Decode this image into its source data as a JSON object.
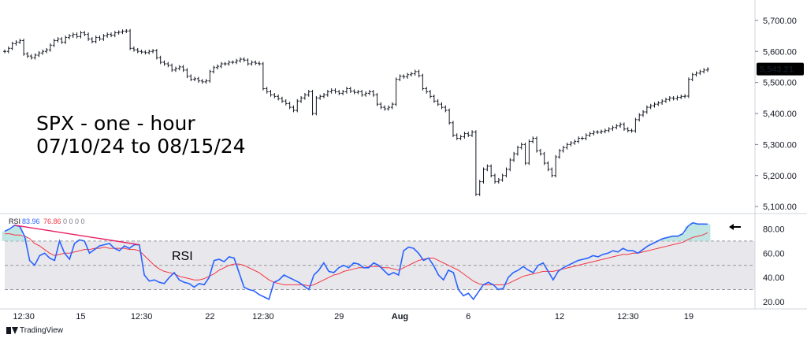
{
  "overlay": {
    "title_line1": "SPX - one - hour",
    "title_line2": "07/10/24 to 08/15/24",
    "rsi_note": "RSI"
  },
  "rsi_header": {
    "name": "RSI",
    "value": "83.96",
    "ma_value": "76.86",
    "zeros": "0 0 0 0"
  },
  "footer": {
    "brand": "TradingView",
    "icon": "tradingview-logo-icon"
  },
  "colors": {
    "price": "#131722",
    "rsi": "#2962ff",
    "rsi_ma": "#f23645",
    "band": "#e8e8ec",
    "grid": "#d1d4dc",
    "price_label_bg": "#000000",
    "trendline": "#e91e63",
    "fill_over": "#b2dfdb"
  },
  "chart_data": [
    {
      "type": "ohlc",
      "title": "SPX - one - hour",
      "ylim": [
        5080,
        5720
      ],
      "y_ticks": [
        "5,100.00",
        "5,200.00",
        "5,300.00",
        "5,400.00",
        "5,500.00",
        "5,600.00",
        "5,700.00"
      ],
      "x_ticks": [
        "12:30",
        "15",
        "12:30",
        "22",
        "12:30",
        "29",
        "Aug",
        "6",
        "12",
        "12:30",
        "19"
      ],
      "last_price": "5,543.21",
      "trading_hours": [
        {
          "date": "07/10",
          "close": [
            5600,
            5610,
            5625,
            5630,
            5635
          ]
        },
        {
          "date": "07/11",
          "close": [
            5592,
            5585,
            5580,
            5588,
            5595,
            5600,
            5605
          ]
        },
        {
          "date": "07/12",
          "close": [
            5620,
            5635,
            5640,
            5630,
            5645,
            5650,
            5655
          ]
        },
        {
          "date": "07/15",
          "close": [
            5648,
            5660,
            5655,
            5640,
            5632,
            5645,
            5640
          ]
        },
        {
          "date": "07/16",
          "close": [
            5650,
            5655,
            5652,
            5660,
            5662,
            5665,
            5666
          ]
        },
        {
          "date": "07/17",
          "close": [
            5610,
            5605,
            5600,
            5598,
            5596,
            5600,
            5602
          ]
        },
        {
          "date": "07/18",
          "close": [
            5580,
            5565,
            5560,
            5555,
            5540,
            5545,
            5550
          ]
        },
        {
          "date": "07/19",
          "close": [
            5540,
            5520,
            5510,
            5512,
            5505,
            5502,
            5505
          ]
        },
        {
          "date": "07/22",
          "close": [
            5535,
            5548,
            5552,
            5560,
            5560,
            5565,
            5565
          ]
        },
        {
          "date": "07/23",
          "close": [
            5570,
            5575,
            5572,
            5560,
            5565,
            5562,
            5560
          ]
        },
        {
          "date": "07/24",
          "close": [
            5480,
            5470,
            5460,
            5455,
            5448,
            5440,
            5432
          ]
        },
        {
          "date": "07/25",
          "close": [
            5420,
            5410,
            5440,
            5450,
            5460,
            5470,
            5400
          ]
        },
        {
          "date": "07/26",
          "close": [
            5450,
            5455,
            5460,
            5470,
            5475,
            5470,
            5465
          ]
        },
        {
          "date": "07/29",
          "close": [
            5470,
            5480,
            5472,
            5468,
            5470,
            5460,
            5465
          ]
        },
        {
          "date": "07/30",
          "close": [
            5470,
            5460,
            5430,
            5420,
            5415,
            5420,
            5430
          ]
        },
        {
          "date": "07/31",
          "close": [
            5510,
            5520,
            5518,
            5525,
            5528,
            5535,
            5522
          ]
        },
        {
          "date": "08/01",
          "close": [
            5480,
            5470,
            5455,
            5440,
            5430,
            5420,
            5410
          ]
        },
        {
          "date": "08/02",
          "close": [
            5370,
            5330,
            5320,
            5325,
            5335,
            5330,
            5340
          ]
        },
        {
          "date": "08/05",
          "close": [
            5140,
            5180,
            5220,
            5230,
            5200,
            5180,
            5186
          ]
        },
        {
          "date": "08/06",
          "close": [
            5200,
            5220,
            5250,
            5270,
            5290,
            5300,
            5240
          ]
        },
        {
          "date": "08/07",
          "close": [
            5310,
            5320,
            5280,
            5270,
            5240,
            5220,
            5200
          ]
        },
        {
          "date": "08/08",
          "close": [
            5260,
            5280,
            5290,
            5300,
            5305,
            5310,
            5320
          ]
        },
        {
          "date": "08/09",
          "close": [
            5320,
            5330,
            5335,
            5340,
            5340,
            5342,
            5345
          ]
        },
        {
          "date": "08/12",
          "close": [
            5350,
            5355,
            5360,
            5365,
            5350,
            5345,
            5344
          ]
        },
        {
          "date": "08/13",
          "close": [
            5380,
            5395,
            5405,
            5420,
            5425,
            5430,
            5434
          ]
        },
        {
          "date": "08/14",
          "close": [
            5440,
            5445,
            5450,
            5448,
            5452,
            5455,
            5456
          ]
        },
        {
          "date": "08/15",
          "close": [
            5510,
            5525,
            5530,
            5535,
            5540,
            5543
          ]
        }
      ]
    },
    {
      "type": "line",
      "title": "RSI",
      "ylim": [
        18,
        92
      ],
      "y_ticks": [
        "20.00",
        "40.00",
        "60.00",
        "80.00"
      ],
      "levels": [
        30,
        50,
        70
      ],
      "band": [
        30,
        70
      ],
      "series": [
        {
          "name": "RSI",
          "values": [
            78,
            80,
            83,
            82,
            74,
            54,
            50,
            58,
            60,
            56,
            54,
            70,
            60,
            55,
            68,
            71,
            70,
            60,
            63,
            66,
            67,
            68,
            64,
            62,
            66,
            64,
            67,
            67,
            42,
            37,
            38,
            36,
            35,
            40,
            44,
            38,
            36,
            35,
            32,
            35,
            34,
            40,
            54,
            55,
            53,
            57,
            56,
            44,
            32,
            30,
            29,
            26,
            24,
            22,
            36,
            38,
            42,
            40,
            38,
            36,
            33,
            30,
            42,
            46,
            52,
            45,
            44,
            48,
            50,
            48,
            52,
            51,
            48,
            48,
            52,
            50,
            46,
            42,
            44,
            42,
            62,
            65,
            64,
            60,
            54,
            56,
            50,
            42,
            38,
            46,
            44,
            30,
            25,
            27,
            22,
            28,
            34,
            36,
            34,
            30,
            31,
            40,
            44,
            46,
            49,
            46,
            44,
            50,
            52,
            45,
            38,
            45,
            48,
            50,
            52,
            54,
            55,
            56,
            58,
            57,
            59,
            60,
            62,
            61,
            64,
            62,
            62,
            60,
            63,
            66,
            68,
            70,
            72,
            73,
            74,
            74,
            76,
            82,
            85,
            84,
            84,
            83.96
          ]
        },
        {
          "name": "RSI-based MA",
          "values": [
            76,
            76,
            75,
            75,
            74,
            72,
            68,
            66,
            63,
            60,
            58,
            59,
            60,
            60,
            61,
            62,
            63,
            63,
            64,
            64,
            65,
            64,
            64,
            64,
            64,
            63,
            63,
            62,
            58,
            54,
            50,
            47,
            45,
            44,
            43,
            41,
            40,
            39,
            38,
            38,
            39,
            41,
            43,
            46,
            48,
            50,
            51,
            51,
            50,
            48,
            46,
            44,
            41,
            38,
            36,
            35,
            34,
            34,
            34,
            34,
            34,
            33,
            34,
            36,
            38,
            40,
            42,
            43,
            45,
            46,
            47,
            48,
            48,
            49,
            49,
            49,
            48,
            48,
            47,
            46,
            48,
            50,
            52,
            54,
            55,
            56,
            56,
            54,
            52,
            50,
            48,
            46,
            43,
            40,
            37,
            35,
            34,
            34,
            34,
            34,
            34,
            35,
            37,
            39,
            41,
            42,
            43,
            44,
            45,
            45,
            45,
            46,
            47,
            48,
            49,
            50,
            51,
            52,
            53,
            54,
            55,
            56,
            57,
            58,
            59,
            59,
            60,
            60,
            61,
            62,
            63,
            64,
            65,
            66,
            67,
            68,
            69,
            71,
            73,
            74,
            75,
            76.86
          ]
        }
      ]
    }
  ]
}
